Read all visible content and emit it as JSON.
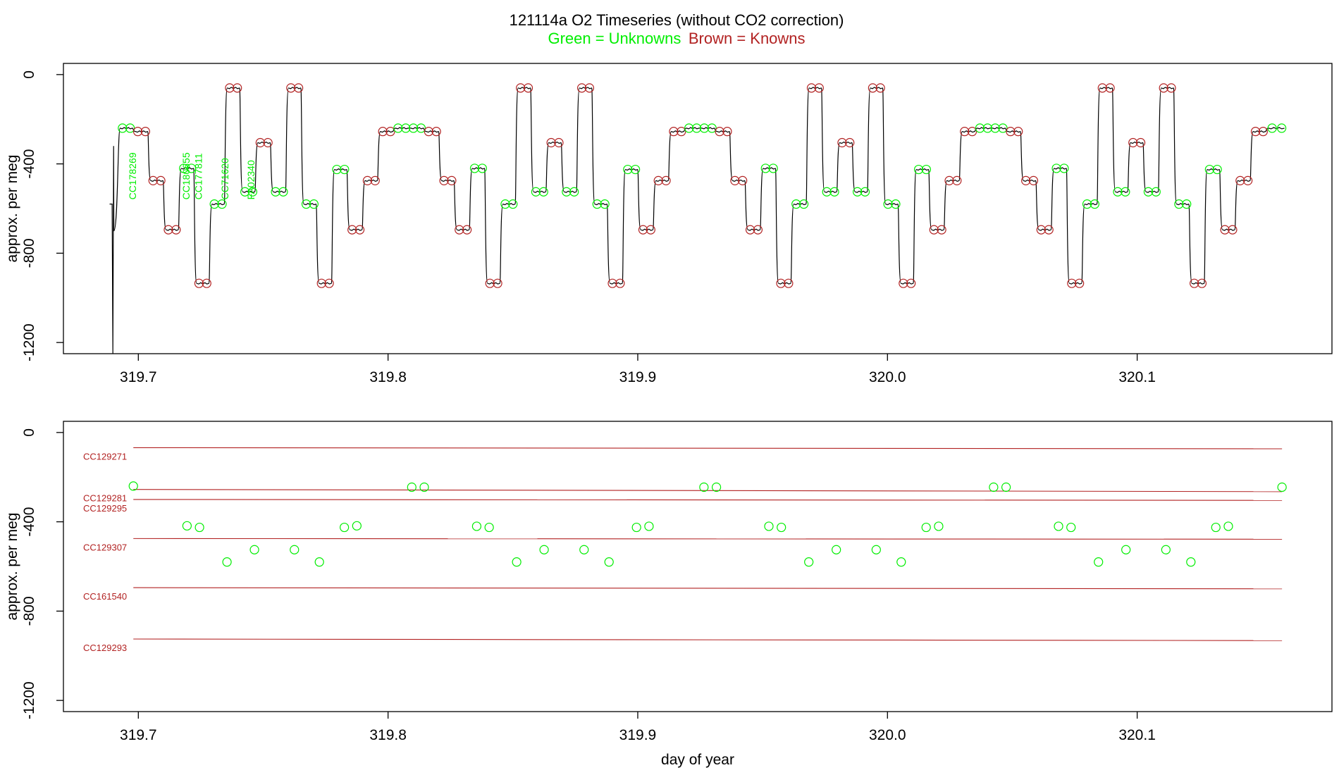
{
  "title": "121114a   O2 Timeseries (without CO2 correction)",
  "legend": {
    "green_text": "Green = Unknowns",
    "brown_text": "Brown = Knowns",
    "green_color": "#00ee00",
    "brown_color": "#b22222"
  },
  "colors": {
    "trace": "#000000",
    "unknown": "#00ee00",
    "known": "#b22222",
    "frame": "#000000"
  },
  "chart_data": [
    {
      "type": "line",
      "panel": "top",
      "xlabel": "",
      "ylabel": "approx. per meg",
      "xlim": [
        319.67,
        320.178
      ],
      "ylim": [
        -1250,
        50
      ],
      "x_ticks": [
        319.7,
        319.8,
        319.9,
        320.0,
        320.1
      ],
      "x_tick_labels": [
        "319.7",
        "319.8",
        "319.9",
        "320.0",
        "320.1"
      ],
      "y_ticks": [
        0,
        -400,
        -800,
        -1200
      ],
      "y_tick_labels": [
        "0",
        "-400",
        "-800",
        "-1200"
      ],
      "trace_start": {
        "x": 319.6895,
        "y_from": -580,
        "y_dip": -1250,
        "y_to": -320
      },
      "step_sequence": [
        {
          "y": -240,
          "kind": "unknown"
        },
        {
          "y": -255,
          "kind": "known"
        },
        {
          "y": -475,
          "kind": "known"
        },
        {
          "y": -695,
          "kind": "known"
        },
        {
          "y": -420,
          "kind": "unknown"
        },
        {
          "y": -935,
          "kind": "known"
        },
        {
          "y": -580,
          "kind": "unknown"
        },
        {
          "y": -60,
          "kind": "known"
        },
        {
          "y": -525,
          "kind": "unknown"
        },
        {
          "y": -305,
          "kind": "known"
        },
        {
          "y": -525,
          "kind": "unknown"
        },
        {
          "y": -60,
          "kind": "known"
        },
        {
          "y": -580,
          "kind": "unknown"
        },
        {
          "y": -935,
          "kind": "known"
        },
        {
          "y": -425,
          "kind": "unknown"
        },
        {
          "y": -695,
          "kind": "known"
        },
        {
          "y": -475,
          "kind": "known"
        },
        {
          "y": -255,
          "kind": "known"
        },
        {
          "y": -240,
          "kind": "unknown"
        }
      ],
      "sample_labels": [
        {
          "text": "CC178269",
          "x": 319.699
        },
        {
          "text": "CC180655",
          "x": 319.7205
        },
        {
          "text": "CC177811",
          "x": 319.7255
        },
        {
          "text": "CC71620",
          "x": 319.736
        },
        {
          "text": "FA02340",
          "x": 319.7465
        }
      ]
    },
    {
      "type": "scatter",
      "panel": "bottom",
      "xlabel": "day of year",
      "ylabel": "approx. per meg",
      "xlim": [
        319.67,
        320.178
      ],
      "ylim": [
        -1250,
        50
      ],
      "x_ticks": [
        319.7,
        319.8,
        319.9,
        320.0,
        320.1
      ],
      "x_tick_labels": [
        "319.7",
        "319.8",
        "319.9",
        "320.0",
        "320.1"
      ],
      "y_ticks": [
        0,
        -400,
        -800,
        -1200
      ],
      "y_tick_labels": [
        "0",
        "-400",
        "-800",
        "-1200"
      ],
      "reference_lines": [
        {
          "name": "CC129271",
          "y_start": -68,
          "y_end": -73
        },
        {
          "name": "CC129281",
          "y_start": -255,
          "y_end": -265
        },
        {
          "name": "CC129295",
          "y_start": -300,
          "y_end": -304
        },
        {
          "name": "CC129307",
          "y_start": -475,
          "y_end": -478
        },
        {
          "name": "CC161540",
          "y_start": -695,
          "y_end": -700
        },
        {
          "name": "CC129293",
          "y_start": -925,
          "y_end": -932
        }
      ],
      "reference_x_range": [
        319.698,
        320.158
      ],
      "unknowns": {
        "x": [
          319.698,
          319.7195,
          319.7245,
          319.7355,
          319.7465,
          319.7625,
          319.7725,
          319.7825,
          319.7875,
          319.8095,
          319.8145,
          319.8355,
          319.8405,
          319.8515,
          319.8625,
          319.8785,
          319.8885,
          319.8995,
          319.9045,
          319.9265,
          319.9315,
          319.9525,
          319.9575,
          319.9685,
          319.9795,
          319.9955,
          320.0055,
          320.0155,
          320.0205,
          320.0425,
          320.0475,
          320.0685,
          320.0735,
          320.0845,
          320.0955,
          320.1115,
          320.1215,
          320.1315,
          320.1365,
          320.158
        ],
        "y": [
          -240,
          -418,
          -425,
          -580,
          -525,
          -525,
          -580,
          -425,
          -418,
          -245,
          -245,
          -420,
          -425,
          -580,
          -525,
          -525,
          -580,
          -425,
          -420,
          -245,
          -245,
          -420,
          -425,
          -580,
          -525,
          -525,
          -580,
          -425,
          -420,
          -245,
          -245,
          -420,
          -425,
          -580,
          -525,
          -525,
          -580,
          -425,
          -420,
          -245
        ]
      }
    }
  ]
}
